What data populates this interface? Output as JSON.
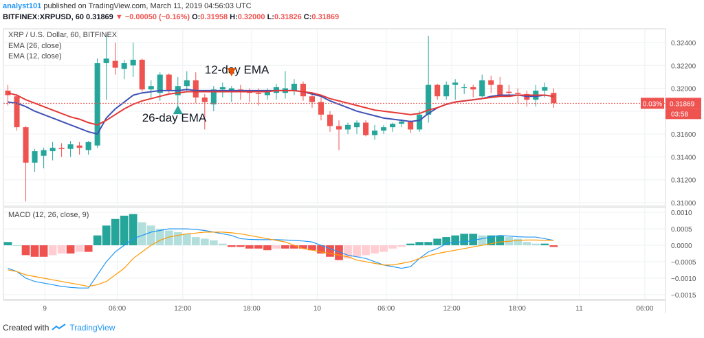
{
  "header": {
    "user": "analyst101",
    "published_text": "published on TradingView.com, March 11, 2019 04:56:03 UTC",
    "symbol": "BITFINEX:XRPUSD, 60",
    "last": "0.31869",
    "change": "−0.00050 (−0.16%)",
    "o_label": "O:",
    "o_value": "0.31958",
    "h_label": "H:",
    "h_value": "0.32000",
    "l_label": "L:",
    "l_value": "0.31826",
    "c_label": "C:",
    "c_value": "0.31869"
  },
  "footer": {
    "created_with": "Created with",
    "brand": "TradingView"
  },
  "colors": {
    "up": "#26a69a",
    "down": "#ef5350",
    "ema26": "#3f51b5",
    "ema12": "#e53935",
    "macd": "#2196f3",
    "signal": "#ff9800"
  },
  "chart_data": [
    {
      "type": "candlestick",
      "title": "XRP / U.S. Dollar, 60, BITFINEX",
      "legend": [
        "EMA (26, close)",
        "EMA (12, close)"
      ],
      "ylim": [
        0.3097,
        0.3252
      ],
      "yticks": [
        "0.31000",
        "0.31200",
        "0.31400",
        "0.31600",
        "0.31800",
        "0.32000",
        "0.32200",
        "0.32400"
      ],
      "x_labels": [
        "9",
        "06:00",
        "12:00",
        "18:00",
        "10",
        "06:00",
        "12:00",
        "18:00",
        "11",
        "06:00"
      ],
      "price_tag": "0.31869",
      "change_tag": "0.03%",
      "countdown_tag": "03:58",
      "annotations": [
        "12-day EMA",
        "26-day EMA"
      ],
      "candles": [
        [
          0.3198,
          0.3203,
          0.3185,
          0.3194
        ],
        [
          0.3193,
          0.3195,
          0.3163,
          0.3166
        ],
        [
          0.3166,
          0.3167,
          0.3101,
          0.3135
        ],
        [
          0.3135,
          0.3147,
          0.3127,
          0.3145
        ],
        [
          0.3141,
          0.3148,
          0.313,
          0.3146
        ],
        [
          0.3145,
          0.3153,
          0.3137,
          0.3148
        ],
        [
          0.3148,
          0.3152,
          0.314,
          0.3147
        ],
        [
          0.3147,
          0.3154,
          0.314,
          0.3151
        ],
        [
          0.315,
          0.3153,
          0.3142,
          0.3148
        ],
        [
          0.3146,
          0.3154,
          0.3142,
          0.3153
        ],
        [
          0.315,
          0.3226,
          0.3148,
          0.3222
        ],
        [
          0.3222,
          0.3247,
          0.319,
          0.3226
        ],
        [
          0.3224,
          0.324,
          0.3212,
          0.3218
        ],
        [
          0.3217,
          0.3225,
          0.3208,
          0.3222
        ],
        [
          0.322,
          0.324,
          0.321,
          0.3225
        ],
        [
          0.3225,
          0.3226,
          0.3197,
          0.3199
        ],
        [
          0.3199,
          0.3207,
          0.3192,
          0.3202
        ],
        [
          0.3196,
          0.3214,
          0.3189,
          0.3212
        ],
        [
          0.3212,
          0.3213,
          0.3196,
          0.3198
        ],
        [
          0.3194,
          0.321,
          0.3185,
          0.3202
        ],
        [
          0.3202,
          0.3215,
          0.3197,
          0.3207
        ],
        [
          0.3207,
          0.3214,
          0.3187,
          0.3192
        ],
        [
          0.3192,
          0.3195,
          0.3164,
          0.3188
        ],
        [
          0.3186,
          0.3202,
          0.318,
          0.3199
        ],
        [
          0.3199,
          0.3205,
          0.3192,
          0.3201
        ],
        [
          0.3198,
          0.3202,
          0.3188,
          0.32
        ],
        [
          0.3199,
          0.3203,
          0.319,
          0.3197
        ],
        [
          0.3197,
          0.32,
          0.3188,
          0.3196
        ],
        [
          0.3196,
          0.32,
          0.3185,
          0.3195
        ],
        [
          0.3194,
          0.32,
          0.319,
          0.3198
        ],
        [
          0.3196,
          0.3204,
          0.319,
          0.3201
        ],
        [
          0.3196,
          0.3215,
          0.3191,
          0.32
        ],
        [
          0.3198,
          0.3208,
          0.3194,
          0.3204
        ],
        [
          0.3204,
          0.3206,
          0.3189,
          0.3193
        ],
        [
          0.3193,
          0.3196,
          0.3183,
          0.3188
        ],
        [
          0.3188,
          0.3192,
          0.3172,
          0.3177
        ],
        [
          0.3177,
          0.318,
          0.3162,
          0.3167
        ],
        [
          0.3167,
          0.3172,
          0.3146,
          0.3164
        ],
        [
          0.3164,
          0.317,
          0.316,
          0.3168
        ],
        [
          0.3166,
          0.3172,
          0.316,
          0.317
        ],
        [
          0.317,
          0.3172,
          0.3158,
          0.3159
        ],
        [
          0.3159,
          0.3168,
          0.3155,
          0.3163
        ],
        [
          0.3163,
          0.3168,
          0.316,
          0.3166
        ],
        [
          0.3166,
          0.317,
          0.3162,
          0.3169
        ],
        [
          0.3169,
          0.3173,
          0.3166,
          0.3171
        ],
        [
          0.3171,
          0.3172,
          0.3161,
          0.3164
        ],
        [
          0.3164,
          0.318,
          0.3162,
          0.3177
        ],
        [
          0.3177,
          0.3246,
          0.317,
          0.3203
        ],
        [
          0.3203,
          0.3204,
          0.319,
          0.3193
        ],
        [
          0.3193,
          0.3206,
          0.319,
          0.3203
        ],
        [
          0.3203,
          0.3208,
          0.319,
          0.3205
        ],
        [
          0.3201,
          0.3204,
          0.3195,
          0.3201
        ],
        [
          0.3201,
          0.3203,
          0.3192,
          0.3199
        ],
        [
          0.3193,
          0.3212,
          0.3192,
          0.3207
        ],
        [
          0.3207,
          0.3211,
          0.3196,
          0.3203
        ],
        [
          0.3203,
          0.321,
          0.3194,
          0.3193
        ],
        [
          0.3197,
          0.3203,
          0.3194,
          0.3196
        ],
        [
          0.3196,
          0.32,
          0.3187,
          0.3195
        ],
        [
          0.3195,
          0.3198,
          0.3184,
          0.319
        ],
        [
          0.319,
          0.3203,
          0.3184,
          0.3198
        ],
        [
          0.3198,
          0.3205,
          0.3192,
          0.3201
        ],
        [
          0.3196,
          0.32,
          0.3183,
          0.3187
        ]
      ],
      "ema26": [
        0.3188,
        0.3187,
        0.3184,
        0.318,
        0.3177,
        0.3174,
        0.3171,
        0.3168,
        0.3165,
        0.3162,
        0.316,
        0.3174,
        0.3182,
        0.3188,
        0.3194,
        0.3196,
        0.3197,
        0.3198,
        0.3198,
        0.3198,
        0.3199,
        0.3198,
        0.3198,
        0.3198,
        0.3198,
        0.3198,
        0.3198,
        0.3198,
        0.3198,
        0.3198,
        0.3198,
        0.3198,
        0.3198,
        0.3197,
        0.3195,
        0.3193,
        0.3189,
        0.3186,
        0.3183,
        0.318,
        0.3178,
        0.3176,
        0.3174,
        0.3173,
        0.3172,
        0.3171,
        0.3172,
        0.3178,
        0.3183,
        0.3186,
        0.3188,
        0.3189,
        0.319,
        0.3191,
        0.3193,
        0.3194,
        0.3194,
        0.3194,
        0.3193,
        0.3193,
        0.3194,
        0.3193
      ],
      "ema12": [
        0.3196,
        0.3194,
        0.319,
        0.3187,
        0.3184,
        0.3181,
        0.3178,
        0.3175,
        0.3173,
        0.317,
        0.3168,
        0.3172,
        0.3177,
        0.3182,
        0.3186,
        0.3189,
        0.3191,
        0.3193,
        0.3195,
        0.3196,
        0.3197,
        0.3197,
        0.3197,
        0.3197,
        0.3197,
        0.3197,
        0.3197,
        0.3197,
        0.3197,
        0.3197,
        0.3198,
        0.3198,
        0.3198,
        0.3197,
        0.3196,
        0.3194,
        0.3191,
        0.3189,
        0.3187,
        0.3185,
        0.3183,
        0.3181,
        0.318,
        0.3179,
        0.3178,
        0.3177,
        0.3178,
        0.3181,
        0.3183,
        0.3186,
        0.3188,
        0.3189,
        0.319,
        0.3191,
        0.3192,
        0.3193,
        0.3193,
        0.3194,
        0.3194,
        0.3194,
        0.3194,
        0.3193
      ]
    },
    {
      "type": "macd",
      "title": "MACD (12, 26, close, 9)",
      "ylim": [
        -0.00165,
        0.00115
      ],
      "yticks": [
        "0.0010",
        "0.0005",
        "0.0000",
        "−0.0005",
        "−0.0010",
        "−0.0015"
      ],
      "histogram": [
        0.0001,
        0.0,
        -0.0003,
        -0.00035,
        -0.00035,
        -0.0003,
        -0.00025,
        -0.00025,
        -0.0002,
        -0.0002,
        0.0003,
        0.0006,
        0.0008,
        0.0009,
        0.00095,
        0.0007,
        0.0006,
        0.0005,
        0.00045,
        0.0004,
        0.00035,
        0.00025,
        0.0002,
        0.00015,
        5e-05,
        -5e-05,
        -5e-05,
        -0.0001,
        -0.0001,
        -0.00015,
        -0.0001,
        -0.0001,
        -0.0001,
        -0.0001,
        -0.00015,
        -0.00025,
        -0.00035,
        -0.00045,
        -0.0004,
        -0.00035,
        -0.0003,
        -0.00025,
        -0.0002,
        -0.0001,
        -5e-05,
        5e-05,
        0.0001,
        0.0001,
        0.0002,
        0.00025,
        0.0003,
        0.00035,
        0.00035,
        0.0003,
        0.0003,
        0.0003,
        0.00025,
        0.0002,
        0.0001,
        5e-05,
        5e-05,
        -5e-05
      ],
      "macd": [
        -0.0007,
        -0.0008,
        -0.001,
        -0.0011,
        -0.00115,
        -0.0012,
        -0.00125,
        -0.00128,
        -0.0013,
        -0.0013,
        -0.0009,
        -0.0005,
        -0.0002,
        0.0,
        0.0002,
        0.0003,
        0.0004,
        0.00045,
        0.0005,
        0.0005,
        0.0005,
        0.00048,
        0.00045,
        0.0004,
        0.00035,
        0.0003,
        0.0002,
        0.00018,
        0.00017,
        0.00017,
        0.00017,
        0.00016,
        0.00015,
        0.00013,
        0.0001,
        0.0,
        -0.0001,
        -0.0002,
        -0.0003,
        -0.00035,
        -0.0004,
        -0.0005,
        -0.0006,
        -0.00065,
        -0.0007,
        -0.00065,
        -0.0004,
        -0.0002,
        -0.0001,
        5e-05,
        0.0001,
        0.0001,
        0.00015,
        0.0002,
        0.00025,
        0.0003,
        0.00028,
        0.00026,
        0.00025,
        0.00025,
        0.0002,
        0.00015
      ],
      "signal": [
        -0.00075,
        -0.0008,
        -0.0009,
        -0.00095,
        -0.001,
        -0.00105,
        -0.0011,
        -0.00115,
        -0.0012,
        -0.00125,
        -0.0012,
        -0.0011,
        -0.0009,
        -0.0007,
        -0.0004,
        -0.0002,
        0.0,
        0.00015,
        0.00025,
        0.0003,
        0.00035,
        0.00037,
        0.0004,
        0.0004,
        0.0004,
        0.00038,
        0.00035,
        0.0003,
        0.00025,
        0.0002,
        0.00015,
        0.0001,
        0.0,
        -0.0001,
        -0.00015,
        -0.0002,
        -0.00025,
        -0.0003,
        -0.00035,
        -0.00045,
        -0.0005,
        -0.00055,
        -0.0006,
        -0.0006,
        -0.00055,
        -0.0005,
        -0.0004,
        -0.00032,
        -0.00025,
        -0.0002,
        -0.00015,
        -0.0001,
        -5e-05,
        0.0,
        5e-05,
        0.0001,
        0.00012,
        0.00015,
        0.00016,
        0.00016,
        0.00015,
        0.00015
      ]
    }
  ]
}
